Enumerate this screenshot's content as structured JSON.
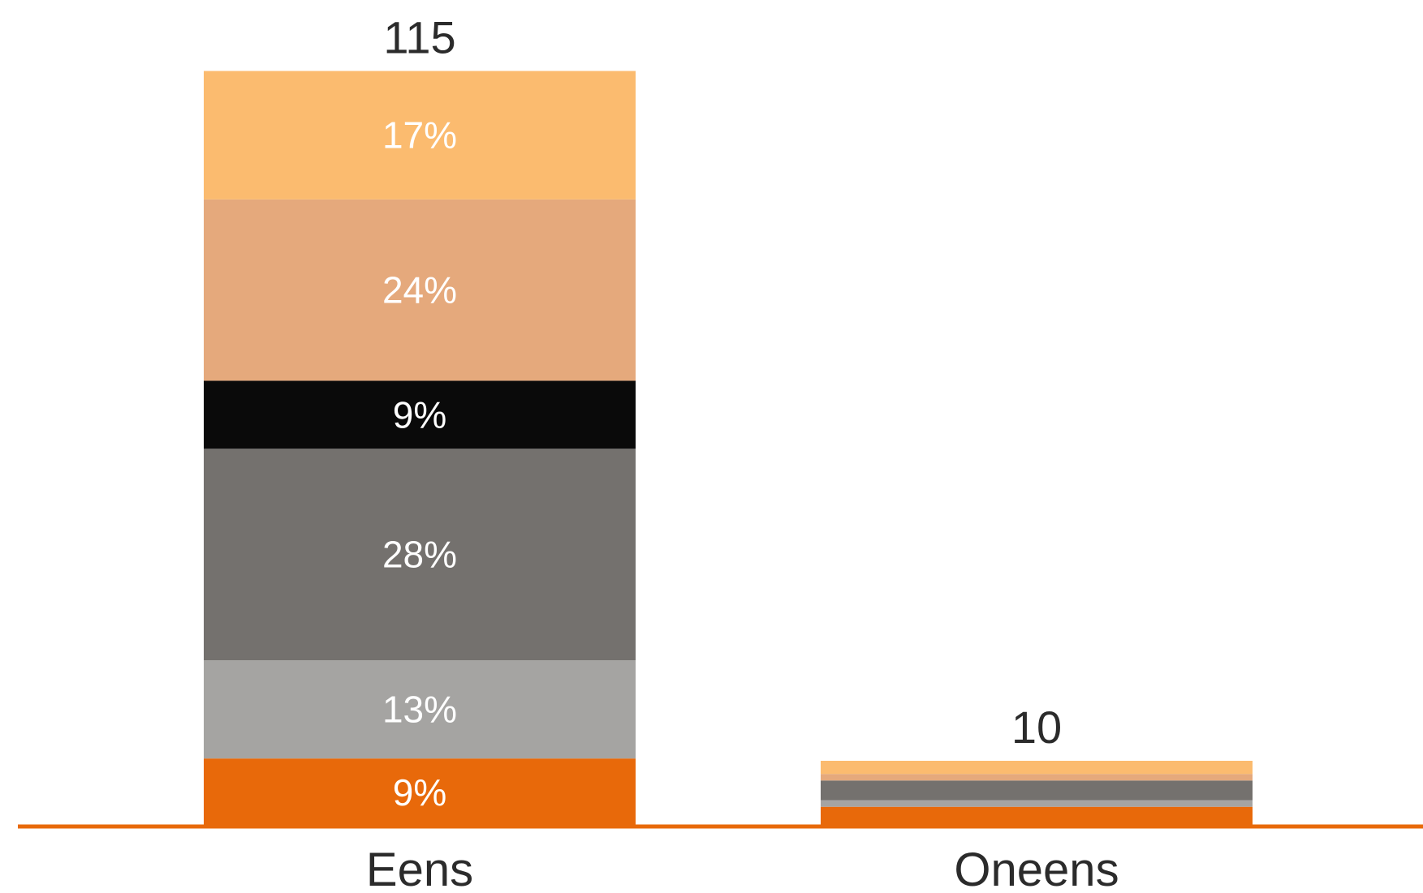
{
  "chart_data": {
    "type": "bar",
    "stacked": true,
    "categories": [
      "Eens",
      "Oneens"
    ],
    "totals": [
      115,
      10
    ],
    "grid": false,
    "legend": "none",
    "series_colors": [
      "#e8690a",
      "#a5a4a2",
      "#74716e",
      "#0a0a0a",
      "#e5a97c",
      "#fbbb6f"
    ],
    "segments": [
      [
        {
          "value": 9,
          "label": "9%"
        },
        {
          "value": 13,
          "label": "13%"
        },
        {
          "value": 28,
          "label": "28%"
        },
        {
          "value": 9,
          "label": "9%"
        },
        {
          "value": 24,
          "label": "24%"
        },
        {
          "value": 17,
          "label": "17%"
        }
      ],
      [
        {
          "value": 30,
          "label": ""
        },
        {
          "value": 10,
          "label": ""
        },
        {
          "value": 30,
          "label": ""
        },
        {
          "value": 0,
          "label": ""
        },
        {
          "value": 10,
          "label": ""
        },
        {
          "value": 20,
          "label": ""
        }
      ]
    ],
    "baseline_color": "#e8690a"
  }
}
